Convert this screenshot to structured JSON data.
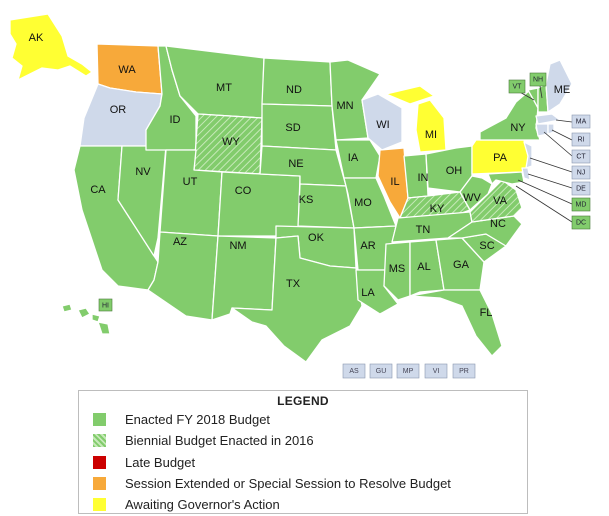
{
  "colors": {
    "enacted": "#82cc6c",
    "biennial": "#82cc6c",
    "late": "#cc0000",
    "extended": "#f7a93a",
    "awaiting": "#ffff33",
    "none": "#cfd9ea"
  },
  "states": {
    "AK": {
      "label": "AK",
      "status": "awaiting"
    },
    "WA": {
      "label": "WA",
      "status": "extended"
    },
    "OR": {
      "label": "OR",
      "status": "none"
    },
    "CA": {
      "label": "CA",
      "status": "enacted"
    },
    "NV": {
      "label": "NV",
      "status": "enacted"
    },
    "ID": {
      "label": "ID",
      "status": "enacted"
    },
    "MT": {
      "label": "MT",
      "status": "enacted"
    },
    "WY": {
      "label": "WY",
      "status": "biennial"
    },
    "UT": {
      "label": "UT",
      "status": "enacted"
    },
    "CO": {
      "label": "CO",
      "status": "enacted"
    },
    "AZ": {
      "label": "AZ",
      "status": "enacted"
    },
    "NM": {
      "label": "NM",
      "status": "enacted"
    },
    "ND": {
      "label": "ND",
      "status": "enacted"
    },
    "SD": {
      "label": "SD",
      "status": "enacted"
    },
    "NE": {
      "label": "NE",
      "status": "enacted"
    },
    "KS": {
      "label": "KS",
      "status": "enacted"
    },
    "OK": {
      "label": "OK",
      "status": "enacted"
    },
    "TX": {
      "label": "TX",
      "status": "enacted"
    },
    "MN": {
      "label": "MN",
      "status": "enacted"
    },
    "IA": {
      "label": "IA",
      "status": "enacted"
    },
    "MO": {
      "label": "MO",
      "status": "enacted"
    },
    "AR": {
      "label": "AR",
      "status": "enacted"
    },
    "LA": {
      "label": "LA",
      "status": "enacted"
    },
    "WI": {
      "label": "WI",
      "status": "none"
    },
    "IL": {
      "label": "IL",
      "status": "extended"
    },
    "MI": {
      "label": "MI",
      "status": "awaiting"
    },
    "IN": {
      "label": "IN",
      "status": "enacted"
    },
    "OH": {
      "label": "OH",
      "status": "enacted"
    },
    "KY": {
      "label": "KY",
      "status": "biennial"
    },
    "TN": {
      "label": "TN",
      "status": "enacted"
    },
    "MS": {
      "label": "MS",
      "status": "enacted"
    },
    "AL": {
      "label": "AL",
      "status": "enacted"
    },
    "GA": {
      "label": "GA",
      "status": "enacted"
    },
    "FL": {
      "label": "FL",
      "status": "enacted"
    },
    "SC": {
      "label": "SC",
      "status": "enacted"
    },
    "NC": {
      "label": "NC",
      "status": "enacted"
    },
    "VA": {
      "label": "VA",
      "status": "biennial"
    },
    "WV": {
      "label": "WV",
      "status": "enacted"
    },
    "PA": {
      "label": "PA",
      "status": "awaiting"
    },
    "NY": {
      "label": "NY",
      "status": "enacted"
    },
    "ME": {
      "label": "ME",
      "status": "none"
    },
    "HI": {
      "label": "HI",
      "status": "enacted"
    }
  },
  "small_states": {
    "VT": {
      "label": "VT",
      "status": "enacted"
    },
    "NH": {
      "label": "NH",
      "status": "enacted"
    },
    "MA": {
      "label": "MA",
      "status": "none"
    },
    "RI": {
      "label": "RI",
      "status": "none"
    },
    "CT": {
      "label": "CT",
      "status": "none"
    },
    "NJ": {
      "label": "NJ",
      "status": "none"
    },
    "DE": {
      "label": "DE",
      "status": "none"
    },
    "MD": {
      "label": "MD",
      "status": "enacted"
    },
    "DC": {
      "label": "DC",
      "status": "enacted"
    }
  },
  "territories": [
    "AS",
    "GU",
    "MP",
    "VI",
    "PR"
  ],
  "legend": {
    "title": "LEGEND",
    "items": [
      {
        "label": "Enacted FY 2018 Budget",
        "status": "enacted"
      },
      {
        "label": "Biennial Budget Enacted in 2016",
        "status": "biennial"
      },
      {
        "label": "Late Budget",
        "status": "late"
      },
      {
        "label": "Session Extended or Special Session to Resolve Budget",
        "status": "extended"
      },
      {
        "label": "Awaiting Governor's Action",
        "status": "awaiting"
      }
    ]
  }
}
